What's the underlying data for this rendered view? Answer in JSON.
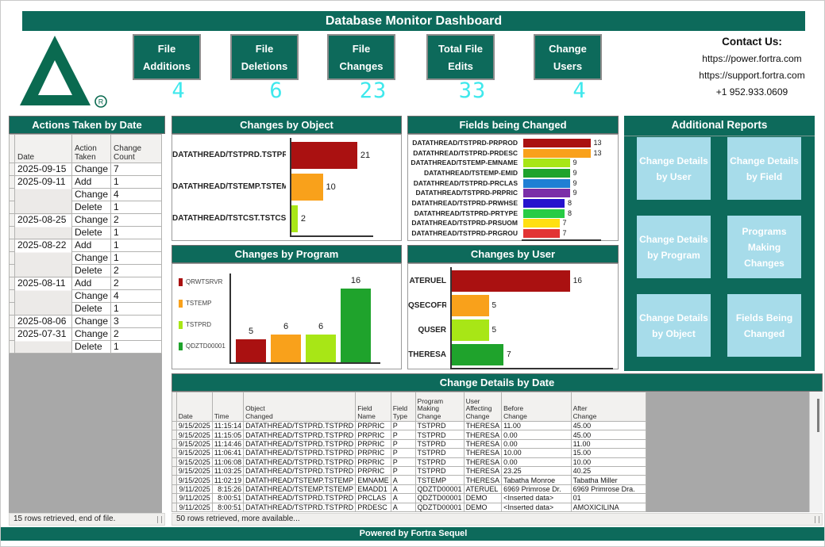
{
  "title": "Database Monitor Dashboard",
  "brand": {
    "logo": "delta-triangle-logo",
    "registered_mark": "R"
  },
  "header": {
    "kpis": [
      {
        "label": "File Additions",
        "line1": "File",
        "line2": "Additions",
        "value": "4"
      },
      {
        "label": "File Deletions",
        "line1": "File",
        "line2": "Deletions",
        "value": "6"
      },
      {
        "label": "File Changes",
        "line1": "File",
        "line2": "Changes",
        "value": "23"
      },
      {
        "label": "Total File Edits",
        "line1": "Total File",
        "line2": "Edits",
        "value": "33"
      },
      {
        "label": "Change Users",
        "line1": "Change",
        "line2": "Users",
        "value": "4"
      }
    ],
    "contact": {
      "heading": "Contact Us:",
      "lines": [
        "https://power.fortra.com",
        "https://support.fortra.com",
        "+1 952.933.0609"
      ]
    }
  },
  "actions_panel": {
    "title": "Actions Taken by Date",
    "columns": [
      "Date",
      "Action\nTaken",
      "Change\nCount"
    ],
    "rows": [
      [
        "2025-09-15",
        "Change",
        "7"
      ],
      [
        "2025-09-11",
        "Add",
        "1"
      ],
      [
        "",
        "Change",
        "4"
      ],
      [
        "",
        "Delete",
        "1"
      ],
      [
        "2025-08-25",
        "Change",
        "2"
      ],
      [
        "",
        "Delete",
        "1"
      ],
      [
        "2025-08-22",
        "Add",
        "1"
      ],
      [
        "",
        "Change",
        "1"
      ],
      [
        "",
        "Delete",
        "2"
      ],
      [
        "2025-08-11",
        "Add",
        "2"
      ],
      [
        "",
        "Change",
        "4"
      ],
      [
        "",
        "Delete",
        "1"
      ],
      [
        "2025-08-06",
        "Change",
        "3"
      ],
      [
        "2025-07-31",
        "Change",
        "2"
      ],
      [
        "",
        "Delete",
        "1"
      ]
    ],
    "status": "15 rows retrieved, end of file."
  },
  "chart_data": [
    {
      "id": "changes_by_object",
      "type": "bar",
      "orientation": "horizontal",
      "title": "Changes by Object",
      "categories": [
        "DATATHREAD/TSTPRD.TSTPRD",
        "DATATHREAD/TSTEMP.TSTEMP",
        "DATATHREAD/TSTCST.TSTCST"
      ],
      "values": [
        21,
        10,
        2
      ],
      "colors": [
        "#aa1111",
        "#f9a11b",
        "#a8e616"
      ],
      "xlim": [
        0,
        25
      ],
      "grid": false,
      "legend": false
    },
    {
      "id": "fields_being_changed",
      "type": "bar",
      "orientation": "horizontal",
      "title": "Fields being Changed",
      "categories": [
        "DATATHREAD/TSTPRD-PRPROD",
        "DATATHREAD/TSTPRD-PRDESC",
        "DATATHREAD/TSTEMP-EMNAME",
        "DATATHREAD/TSTEMP-EMID",
        "DATATHREAD/TSTPRD-PRCLAS",
        "DATATHREAD/TSTPRD-PRPRIC",
        "DATATHREAD/TSTPRD-PRWHSE",
        "DATATHREAD/TSTPRD-PRTYPE",
        "DATATHREAD/TSTPRD-PRSUOM",
        "DATATHREAD/TSTPRD-PRGROU"
      ],
      "values": [
        13,
        13,
        9,
        9,
        9,
        9,
        8,
        8,
        7,
        7
      ],
      "colors": [
        "#aa1111",
        "#f9a11b",
        "#a8e616",
        "#1fa32c",
        "#1f7fd4",
        "#7b2fa8",
        "#2613ce",
        "#27cc45",
        "#ffe012",
        "#e23434"
      ],
      "xlim": [
        0,
        15
      ],
      "grid": false,
      "legend": false
    },
    {
      "id": "changes_by_program",
      "type": "bar",
      "orientation": "vertical",
      "title": "Changes by Program",
      "categories": [
        "QRWTSRVR",
        "TSTEMP",
        "TSTPRD",
        "QDZTD00001"
      ],
      "values": [
        5,
        6,
        6,
        16
      ],
      "colors": [
        "#aa1111",
        "#f9a11b",
        "#a8e616",
        "#1fa32c"
      ],
      "ylim": [
        0,
        18
      ],
      "grid": false,
      "legend": true,
      "legend_position": "left"
    },
    {
      "id": "changes_by_user",
      "type": "bar",
      "orientation": "horizontal",
      "title": "Changes by User",
      "categories": [
        "ATERUEL",
        "QSECOFR",
        "QUSER",
        "THERESA"
      ],
      "values": [
        16,
        5,
        5,
        7
      ],
      "colors": [
        "#aa1111",
        "#f9a11b",
        "#a8e616",
        "#1fa32c"
      ],
      "xlim": [
        0,
        18
      ],
      "grid": false,
      "legend": false
    }
  ],
  "additional_reports": {
    "title": "Additional Reports",
    "buttons": [
      "Change Details by User",
      "Change Details by Field",
      "Change Details by Program",
      "Programs Making Changes",
      "Change Details by Object",
      "Fields Being Changed"
    ]
  },
  "details_panel": {
    "title": "Change Details by Date",
    "columns": [
      "Date",
      "Time",
      "Object\nChanged",
      "Field\nName",
      "Field Type",
      "Program\nMaking\nChange",
      "User\nAffecting\nChange",
      "Before\nChange",
      "After\nChange"
    ],
    "rows": [
      [
        "9/15/2025",
        "11:15:14",
        "DATATHREAD/TSTPRD.TSTPRD",
        "PRPRIC",
        "P",
        "TSTPRD",
        "THERESA",
        "11.00",
        "45.00"
      ],
      [
        "9/15/2025",
        "11:15:05",
        "DATATHREAD/TSTPRD.TSTPRD",
        "PRPRIC",
        "P",
        "TSTPRD",
        "THERESA",
        "0.00",
        "45.00"
      ],
      [
        "9/15/2025",
        "11:14:46",
        "DATATHREAD/TSTPRD.TSTPRD",
        "PRPRIC",
        "P",
        "TSTPRD",
        "THERESA",
        "0.00",
        "11.00"
      ],
      [
        "9/15/2025",
        "11:06:41",
        "DATATHREAD/TSTPRD.TSTPRD",
        "PRPRIC",
        "P",
        "TSTPRD",
        "THERESA",
        "10.00",
        "15.00"
      ],
      [
        "9/15/2025",
        "11:06:08",
        "DATATHREAD/TSTPRD.TSTPRD",
        "PRPRIC",
        "P",
        "TSTPRD",
        "THERESA",
        "0.00",
        "10.00"
      ],
      [
        "9/15/2025",
        "11:03:25",
        "DATATHREAD/TSTPRD.TSTPRD",
        "PRPRIC",
        "P",
        "TSTPRD",
        "THERESA",
        "23.25",
        "40.25"
      ],
      [
        "9/15/2025",
        "11:02:19",
        "DATATHREAD/TSTEMP.TSTEMP",
        "EMNAME",
        "A",
        "TSTEMP",
        "THERESA",
        "Tabatha Monroe",
        "Tabatha Miller"
      ],
      [
        "9/11/2025",
        "8:15:26",
        "DATATHREAD/TSTEMP.TSTEMP",
        "EMADD1",
        "A",
        "QDZTD00001",
        "ATERUEL",
        "6969 Primrose Dr.",
        "6969 Primrose Dra."
      ],
      [
        "9/11/2025",
        "8:00:51",
        "DATATHREAD/TSTPRD.TSTPRD",
        "PRCLAS",
        "A",
        "QDZTD00001",
        "DEMO",
        "<Inserted data>",
        "01"
      ],
      [
        "9/11/2025",
        "8:00:51",
        "DATATHREAD/TSTPRD.TSTPRD",
        "PRDESC",
        "A",
        "QDZTD00001",
        "DEMO",
        "<Inserted data>",
        "AMOXICILINA"
      ]
    ],
    "status": "50 rows retrieved, more available..."
  },
  "footer": "Powered by Fortra  Sequel",
  "colors": {
    "teal": "#0d6a5b",
    "logo_green": "#0a6a50",
    "lcd_cyan": "#3fe8ec",
    "button_blue": "#a7dcea",
    "filler_gray": "#a8a8a8"
  }
}
